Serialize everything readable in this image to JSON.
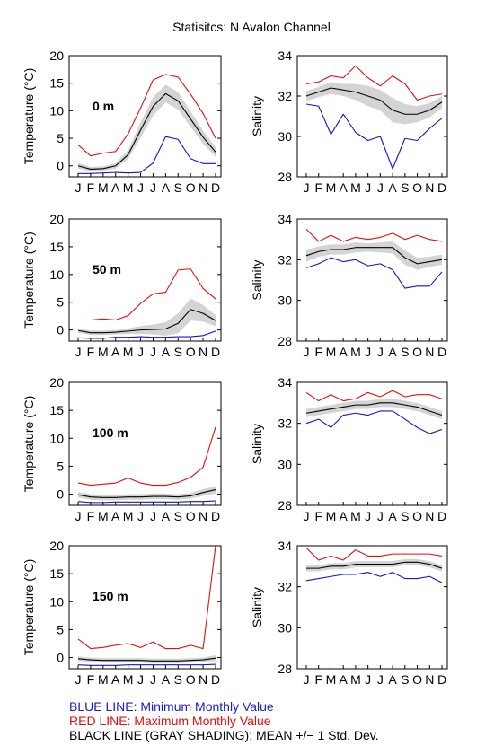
{
  "title": "Statisitcs: N Avalon Channel",
  "legend": {
    "blue": "BLUE LINE: Minimum Monthly Value",
    "red": "RED LINE: Maximum Monthly Value",
    "black": "BLACK LINE (GRAY SHADING): MEAN +/− 1 Std. Dev."
  },
  "colors": {
    "min": "#1414c8",
    "max": "#e01010",
    "mean": "#000000",
    "shading": "#d4d4d4"
  },
  "month_labels": [
    "J",
    "F",
    "M",
    "A",
    "M",
    "J",
    "J",
    "A",
    "S",
    "O",
    "N",
    "D"
  ],
  "chart_data": [
    {
      "type": "line",
      "panel": "temperature",
      "depth_label": "0 m",
      "ylabel": "Temperature (°C)",
      "ylim": [
        -2,
        20
      ],
      "yticks": [
        0,
        5,
        10,
        15,
        20
      ],
      "series": [
        {
          "role": "max",
          "values": [
            3.8,
            1.8,
            2.3,
            2.6,
            5.8,
            10.5,
            15.6,
            16.6,
            16.1,
            13,
            9.5,
            5
          ]
        },
        {
          "role": "mean",
          "values": [
            0,
            -0.6,
            -0.5,
            0,
            2,
            6.5,
            10.8,
            13.1,
            11.8,
            8.5,
            5.2,
            2.5
          ]
        },
        {
          "role": "min",
          "values": [
            -1.4,
            -1.4,
            -1.3,
            -1.2,
            -1.3,
            -1.2,
            0.5,
            5.3,
            4.8,
            1.3,
            0.4,
            0.4
          ]
        }
      ],
      "std": [
        0.5,
        0.4,
        0.4,
        0.5,
        0.8,
        1.4,
        1.7,
        1.6,
        1.6,
        1.4,
        1.2,
        0.9
      ]
    },
    {
      "type": "line",
      "panel": "salinity",
      "ylabel": "Salinity",
      "ylim": [
        28,
        34
      ],
      "yticks": [
        28,
        30,
        32,
        34
      ],
      "series": [
        {
          "role": "max",
          "values": [
            32.6,
            32.7,
            33,
            32.9,
            33.5,
            32.9,
            32.5,
            33,
            32.6,
            31.8,
            32,
            32.1
          ]
        },
        {
          "role": "mean",
          "values": [
            32,
            32.2,
            32.4,
            32.3,
            32.2,
            32,
            31.8,
            31.3,
            31.1,
            31.1,
            31.3,
            31.7
          ]
        },
        {
          "role": "min",
          "values": [
            31.6,
            31.5,
            30.1,
            31.1,
            30.2,
            29.8,
            30,
            28.4,
            29.9,
            29.8,
            30.4,
            30.9
          ]
        }
      ],
      "std": [
        0.25,
        0.25,
        0.3,
        0.3,
        0.4,
        0.5,
        0.5,
        0.6,
        0.5,
        0.4,
        0.35,
        0.3
      ]
    },
    {
      "type": "line",
      "panel": "temperature",
      "depth_label": "50 m",
      "ylabel": "Temperature (°C)",
      "ylim": [
        -2,
        20
      ],
      "yticks": [
        0,
        5,
        10,
        15,
        20
      ],
      "series": [
        {
          "role": "max",
          "values": [
            1.8,
            1.8,
            2,
            1.8,
            2.6,
            4.8,
            6.5,
            6.8,
            10.8,
            11,
            7.5,
            5.6
          ]
        },
        {
          "role": "mean",
          "values": [
            -0.1,
            -0.5,
            -0.5,
            -0.4,
            -0.2,
            0,
            0.1,
            0.2,
            1.2,
            3.7,
            3,
            1.7
          ]
        },
        {
          "role": "min",
          "values": [
            -1.4,
            -1.5,
            -1.5,
            -1.3,
            -1.3,
            -1.2,
            -1.3,
            -1.3,
            -1.2,
            -1.2,
            -1,
            -0.2
          ]
        }
      ],
      "std": [
        0.4,
        0.4,
        0.4,
        0.4,
        0.5,
        0.7,
        0.9,
        1.2,
        1.8,
        2,
        1.5,
        1
      ]
    },
    {
      "type": "line",
      "panel": "salinity",
      "ylabel": "Salinity",
      "ylim": [
        28,
        34
      ],
      "yticks": [
        28,
        30,
        32,
        34
      ],
      "series": [
        {
          "role": "max",
          "values": [
            33.5,
            32.9,
            33.2,
            32.9,
            33.1,
            33,
            33.1,
            33.3,
            33,
            33.2,
            33,
            32.9
          ]
        },
        {
          "role": "mean",
          "values": [
            32.2,
            32.4,
            32.5,
            32.5,
            32.6,
            32.6,
            32.6,
            32.6,
            32.1,
            31.8,
            31.9,
            32
          ]
        },
        {
          "role": "min",
          "values": [
            31.6,
            31.8,
            32.1,
            31.9,
            32,
            31.7,
            31.8,
            31.5,
            30.6,
            30.7,
            30.7,
            31.4
          ]
        }
      ],
      "std": [
        0.3,
        0.25,
        0.25,
        0.25,
        0.25,
        0.2,
        0.25,
        0.3,
        0.35,
        0.3,
        0.25,
        0.25
      ]
    },
    {
      "type": "line",
      "panel": "temperature",
      "depth_label": "100 m",
      "ylabel": "Temperature (°C)",
      "ylim": [
        -2,
        20
      ],
      "yticks": [
        0,
        5,
        10,
        15,
        20
      ],
      "series": [
        {
          "role": "max",
          "values": [
            2,
            1.6,
            1.8,
            2,
            2.9,
            2,
            1.6,
            1.6,
            2.1,
            3,
            4.8,
            12
          ]
        },
        {
          "role": "mean",
          "values": [
            -0.1,
            -0.5,
            -0.6,
            -0.6,
            -0.5,
            -0.5,
            -0.4,
            -0.4,
            -0.5,
            -0.3,
            0.3,
            0.8
          ]
        },
        {
          "role": "min",
          "values": [
            -1.3,
            -1.5,
            -1.5,
            -1.4,
            -1.4,
            -1.4,
            -1.4,
            -1.4,
            -1.4,
            -1.3,
            -1.3,
            -1.2
          ]
        }
      ],
      "std": [
        0.5,
        0.5,
        0.5,
        0.5,
        0.5,
        0.5,
        0.5,
        0.5,
        0.5,
        0.5,
        0.6,
        0.7
      ]
    },
    {
      "type": "line",
      "panel": "salinity",
      "ylabel": "Salinity",
      "ylim": [
        28,
        34
      ],
      "yticks": [
        28,
        30,
        32,
        34
      ],
      "series": [
        {
          "role": "max",
          "values": [
            33.5,
            33.1,
            33.4,
            33.1,
            33.2,
            33.5,
            33.3,
            33.6,
            33.3,
            33.4,
            33.4,
            33.2
          ]
        },
        {
          "role": "mean",
          "values": [
            32.5,
            32.6,
            32.7,
            32.8,
            32.9,
            32.9,
            33,
            33,
            32.9,
            32.8,
            32.6,
            32.4
          ]
        },
        {
          "role": "min",
          "values": [
            32,
            32.2,
            31.8,
            32.4,
            32.5,
            32.4,
            32.6,
            32.6,
            32.2,
            31.8,
            31.5,
            31.7
          ]
        }
      ],
      "std": [
        0.2,
        0.2,
        0.2,
        0.2,
        0.2,
        0.2,
        0.2,
        0.2,
        0.2,
        0.2,
        0.2,
        0.2
      ]
    },
    {
      "type": "line",
      "panel": "temperature",
      "depth_label": "150 m",
      "ylabel": "Temperature (°C)",
      "ylim": [
        -2,
        20
      ],
      "yticks": [
        0,
        5,
        10,
        15,
        20
      ],
      "series": [
        {
          "role": "max",
          "values": [
            3.3,
            1.6,
            1.8,
            2.2,
            2.5,
            1.8,
            2.8,
            1.6,
            1.6,
            2.2,
            1.6,
            20
          ]
        },
        {
          "role": "mean",
          "values": [
            -0.2,
            -0.4,
            -0.5,
            -0.5,
            -0.5,
            -0.5,
            -0.6,
            -0.6,
            -0.6,
            -0.5,
            -0.4,
            -0.1
          ]
        },
        {
          "role": "min",
          "values": [
            -1.3,
            -1.4,
            -1.4,
            -1.4,
            -1.3,
            -1.3,
            -1.3,
            -1.3,
            -1.3,
            -1.3,
            -1.3,
            -1.2
          ]
        }
      ],
      "std": [
        0.4,
        0.4,
        0.4,
        0.4,
        0.4,
        0.4,
        0.4,
        0.4,
        0.4,
        0.4,
        0.4,
        0.5
      ]
    },
    {
      "type": "line",
      "panel": "salinity",
      "ylabel": "Salinity",
      "ylim": [
        28,
        34
      ],
      "yticks": [
        28,
        30,
        32,
        34
      ],
      "series": [
        {
          "role": "max",
          "values": [
            33.9,
            33.3,
            33.5,
            33.3,
            33.8,
            33.5,
            33.5,
            33.6,
            33.6,
            33.6,
            33.6,
            33.5
          ]
        },
        {
          "role": "mean",
          "values": [
            32.9,
            32.9,
            33,
            33,
            33.1,
            33.1,
            33.1,
            33.1,
            33.2,
            33.2,
            33.1,
            32.9
          ]
        },
        {
          "role": "min",
          "values": [
            32.3,
            32.4,
            32.5,
            32.6,
            32.6,
            32.7,
            32.5,
            32.7,
            32.4,
            32.4,
            32.5,
            32.2
          ]
        }
      ],
      "std": [
        0.15,
        0.15,
        0.15,
        0.15,
        0.15,
        0.15,
        0.15,
        0.15,
        0.15,
        0.15,
        0.15,
        0.15
      ]
    }
  ]
}
